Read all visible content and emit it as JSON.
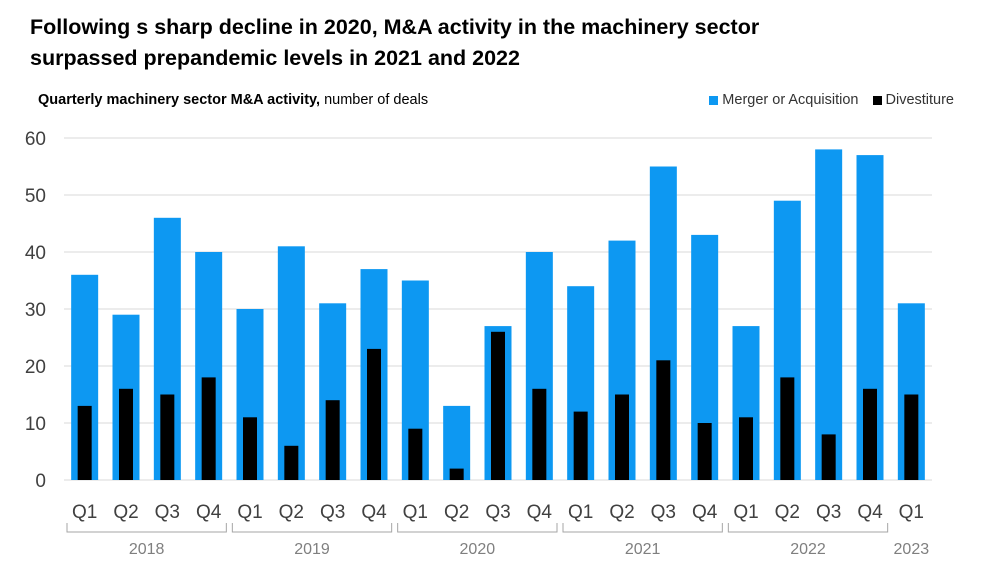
{
  "title": {
    "line1": "Following s sharp decline in 2020, M&A activity in the machinery sector",
    "line2": "surpassed prepandemic levels in 2021 and 2022"
  },
  "subtitle": {
    "bold": "Quarterly machinery sector M&A activity,",
    "normal": " number of deals"
  },
  "legend": [
    {
      "label": "Merger or Acquisition",
      "color": "#0d98f2"
    },
    {
      "label": "Divestiture",
      "color": "#000000"
    }
  ],
  "chart_data": {
    "type": "bar",
    "categories": [
      "Q1",
      "Q2",
      "Q3",
      "Q4",
      "Q1",
      "Q2",
      "Q3",
      "Q4",
      "Q1",
      "Q2",
      "Q3",
      "Q4",
      "Q1",
      "Q2",
      "Q3",
      "Q4",
      "Q1",
      "Q2",
      "Q3",
      "Q4",
      "Q1"
    ],
    "years": [
      {
        "label": "2018",
        "start": 0,
        "end": 3
      },
      {
        "label": "2019",
        "start": 4,
        "end": 7
      },
      {
        "label": "2020",
        "start": 8,
        "end": 11
      },
      {
        "label": "2021",
        "start": 12,
        "end": 15
      },
      {
        "label": "2022",
        "start": 16,
        "end": 19
      },
      {
        "label": "2023",
        "start": 20,
        "end": 20
      }
    ],
    "series": [
      {
        "name": "Merger or Acquisition",
        "color": "#0d98f2",
        "values": [
          36,
          29,
          46,
          40,
          30,
          41,
          31,
          37,
          35,
          13,
          27,
          40,
          34,
          42,
          55,
          43,
          27,
          49,
          58,
          57,
          31
        ]
      },
      {
        "name": "Divestiture",
        "color": "#000000",
        "values": [
          13,
          16,
          15,
          18,
          11,
          6,
          14,
          23,
          9,
          2,
          26,
          16,
          12,
          15,
          21,
          10,
          11,
          18,
          8,
          16,
          15
        ]
      }
    ],
    "yticks": [
      0,
      10,
      20,
      30,
      40,
      50,
      60
    ],
    "ylim": [
      0,
      60
    ],
    "grid": true
  }
}
